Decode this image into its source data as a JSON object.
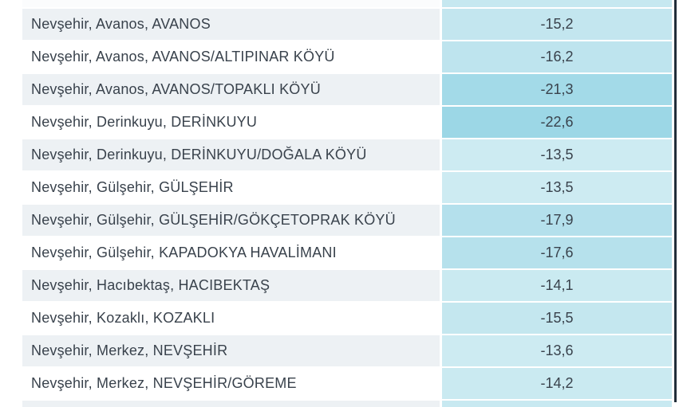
{
  "table": {
    "rows": [
      {
        "location": "Nevşehir, Avanos, AVANOS",
        "value": "-15,2",
        "value_color": "#c3e6ef"
      },
      {
        "location": "Nevşehir, Avanos, AVANOS/ALTIPINAR KÖYÜ",
        "value": "-16,2",
        "value_color": "#bee4ee"
      },
      {
        "location": "Nevşehir, Avanos, AVANOS/TOPAKLI KÖYÜ",
        "value": "-21,3",
        "value_color": "#a3dae8"
      },
      {
        "location": "Nevşehir, Derinkuyu, DERİNKUYU",
        "value": "-22,6",
        "value_color": "#9cd7e6"
      },
      {
        "location": "Nevşehir, Derinkuyu, DERİNKUYU/DOĞALA KÖYÜ",
        "value": "-13,5",
        "value_color": "#cdebf2"
      },
      {
        "location": "Nevşehir, Gülşehir, GÜLŞEHİR",
        "value": "-13,5",
        "value_color": "#cdebf2"
      },
      {
        "location": "Nevşehir, Gülşehir, GÜLŞEHİR/GÖKÇETOPRAK KÖYÜ",
        "value": "-17,9",
        "value_color": "#b4e0ec"
      },
      {
        "location": "Nevşehir, Gülşehir, KAPADOKYA HAVALİMANI",
        "value": "-17,6",
        "value_color": "#b6e1ec"
      },
      {
        "location": "Nevşehir, Hacıbektaş, HACIBEKTAŞ",
        "value": "-14,1",
        "value_color": "#caeaf1"
      },
      {
        "location": "Nevşehir, Kozaklı, KOZAKLI",
        "value": "-15,5",
        "value_color": "#c4e7ef"
      },
      {
        "location": "Nevşehir, Merkez, NEVŞEHİR",
        "value": "-13,6",
        "value_color": "#cdebf2"
      },
      {
        "location": "Nevşehir, Merkez, NEVŞEHİR/GÖREME",
        "value": "-14,2",
        "value_color": "#caeaf1"
      }
    ],
    "partial_top": {
      "value_color": "#c6e8f0"
    },
    "partial_bottom": {
      "value_color": "#c8e9f1"
    }
  },
  "colors": {
    "row_shaded": "#edf1f4",
    "row_plain": "#ffffff",
    "text": "#39424c",
    "window_border": "#222e3a"
  }
}
